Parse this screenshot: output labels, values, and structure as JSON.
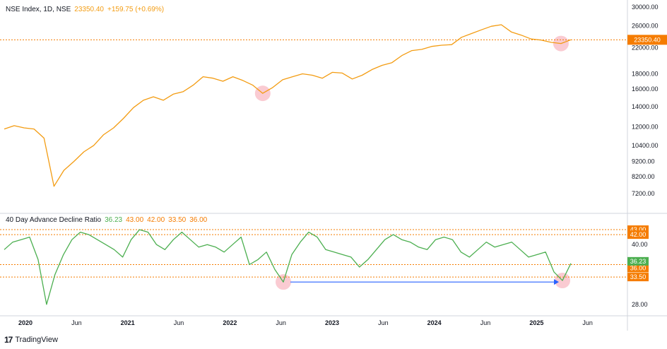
{
  "upper_legend": {
    "symbol": "NSE Index, 1D, NSE",
    "last": "23350.40",
    "change": "+159.75 (+0.69%)"
  },
  "lower_legend": {
    "name": "40 Day Advance Decline Ratio",
    "v1": "36.23",
    "v2": "43.00",
    "v3": "42.00",
    "v4": "33.50",
    "v5": "36.00"
  },
  "branding": "TradingView",
  "colors": {
    "index_line": "#f39c12",
    "ratio_line": "#4caf50",
    "level_line": "#f57c00",
    "arrow": "#2962ff",
    "highlight": "#f8b9c3"
  },
  "chart_data": [
    {
      "type": "line",
      "series": [
        {
          "name": "NSE Index, 1D, NSE",
          "values": [
            11800,
            12100,
            11900,
            11800,
            11000,
            7610,
            8600,
            9200,
            9900,
            10400,
            11300,
            11900,
            12800,
            13900,
            14700,
            15100,
            14700,
            15400,
            15700,
            16500,
            17600,
            17400,
            17000,
            17600,
            17100,
            16500,
            15500,
            16200,
            17200,
            17600,
            18000,
            17800,
            17400,
            18200,
            18100,
            17300,
            17800,
            18600,
            19200,
            19600,
            20700,
            21500,
            21700,
            22200,
            22400,
            22500,
            23800,
            24500,
            25200,
            25900,
            26200,
            24800,
            24200,
            23500,
            23300,
            22900,
            22700,
            23350.4
          ]
        }
      ],
      "x_tick_labels": [
        "2020",
        "Jun",
        "2021",
        "Jun",
        "2022",
        "Jun",
        "2023",
        "Jun",
        "2024",
        "Jun",
        "2025",
        "Jun"
      ],
      "y_tick_labels": [
        "30000.00",
        "26000.00",
        "22000.00",
        "18000.00",
        "16000.00",
        "14000.00",
        "12000.00",
        "10400.00",
        "9200.00",
        "8200.00",
        "7200.00"
      ],
      "y_scale": "log",
      "ylim": [
        6600,
        30000
      ],
      "last_value_label": "23350.40",
      "grid": false
    },
    {
      "type": "line",
      "series": [
        {
          "name": "40 Day Advance Decline Ratio",
          "values": [
            39,
            40.5,
            41,
            41.5,
            37,
            28,
            34,
            38,
            41,
            42.5,
            42,
            41,
            40,
            39,
            37.5,
            41,
            43,
            42.5,
            40,
            39,
            41,
            42.5,
            41,
            39.5,
            40,
            39.5,
            38.5,
            40,
            41.5,
            36,
            37,
            38.5,
            35,
            32.5,
            38,
            40.5,
            42.5,
            41.5,
            39,
            38.5,
            38,
            37.5,
            35.5,
            37,
            39,
            41,
            42,
            41,
            40.5,
            39.5,
            39,
            41,
            41.5,
            41,
            38.5,
            37.5,
            39,
            40.5,
            39.5,
            40,
            40.5,
            39,
            37.5,
            38,
            38.5,
            34.5,
            32.8,
            36.23
          ]
        }
      ],
      "y_tick_labels": [
        "40.00",
        "28.00"
      ],
      "ylim": [
        27,
        44
      ],
      "level_lines": [
        43.0,
        42.0,
        36.0,
        33.5
      ],
      "level_labels": [
        "43.00",
        "42.00",
        "36.00",
        "33.50"
      ],
      "last_value_label": "36.23",
      "grid": false
    }
  ]
}
